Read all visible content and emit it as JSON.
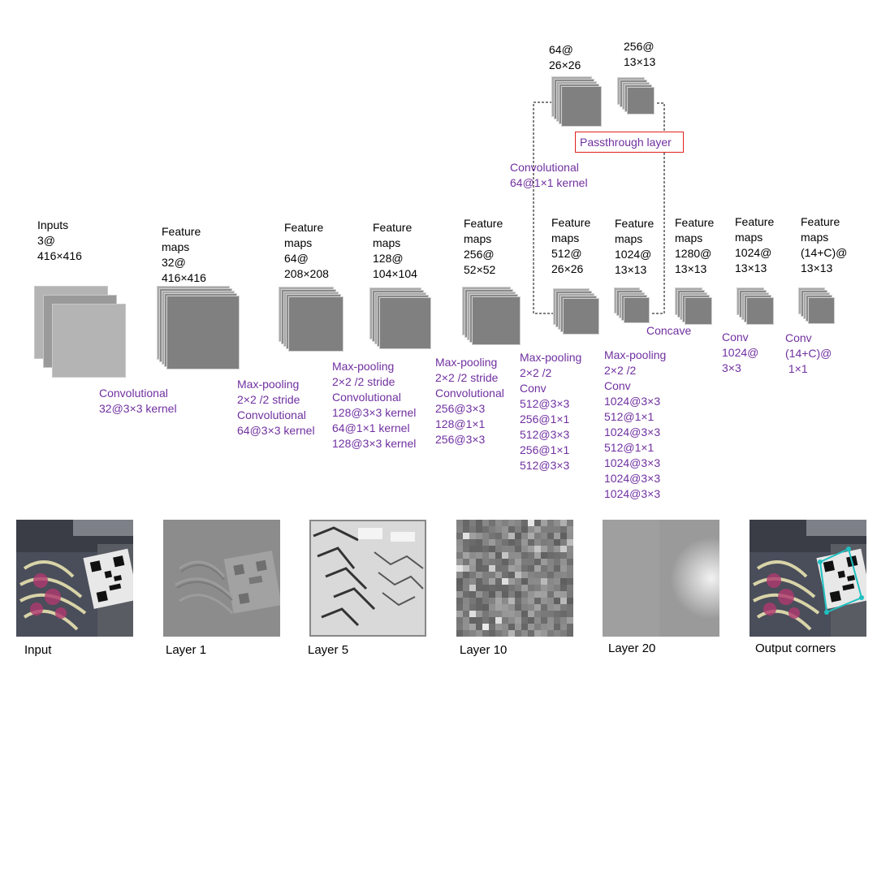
{
  "columns": [
    {
      "id": "inputs",
      "label": "Inputs\n3@\n416×416",
      "op": "Convolutional\n32@3×3 kernel"
    },
    {
      "id": "fm32",
      "label": "Feature\nmaps\n32@\n416×416",
      "op": "Max-pooling\n2×2 /2 stride\nConvolutional\n64@3×3 kernel"
    },
    {
      "id": "fm64",
      "label": "Feature\nmaps\n64@\n208×208",
      "op": "Max-pooling\n2×2 /2 stride\nConvolutional\n128@3×3 kernel\n64@1×1 kernel\n128@3×3 kernel"
    },
    {
      "id": "fm128",
      "label": "Feature\nmaps\n128@\n104×104",
      "op": "Max-pooling\n2×2 /2 stride\nConvolutional\n256@3×3\n128@1×1\n256@3×3"
    },
    {
      "id": "fm256",
      "label": "Feature\nmaps\n256@\n52×52",
      "op": "Max-pooling\n2×2 /2\nConv\n512@3×3\n256@1×1\n512@3×3\n256@1×1\n512@3×3"
    },
    {
      "id": "fm512",
      "label": "Feature\nmaps\n512@\n26×26",
      "op": "Max-pooling\n2×2 /2\nConv\n1024@3×3\n512@1×1\n1024@3×3\n512@1×1\n1024@3×3\n1024@3×3\n1024@3×3"
    },
    {
      "id": "fm1024a",
      "label": "Feature\nmaps\n1024@\n13×13",
      "op": "Concave"
    },
    {
      "id": "fm1280",
      "label": "Feature\nmaps\n1280@\n13×13",
      "op": "Conv\n1024@\n3×3"
    },
    {
      "id": "fm1024b",
      "label": "Feature\nmaps\n1024@\n13×13",
      "op": "Conv\n(14+C)@\n 1×1"
    },
    {
      "id": "fmout",
      "label": "Feature\nmaps\n(14+C)@\n13×13",
      "op": ""
    }
  ],
  "branch": {
    "top_a_label": "64@\n26×26",
    "top_b_label": "256@\n13×13",
    "conv_label": "Convolutional\n64@1×1 kernel",
    "passthrough_label": "Passthrough layer"
  },
  "thumbnails": [
    {
      "id": "input",
      "caption": "Input"
    },
    {
      "id": "layer1",
      "caption": "Layer 1"
    },
    {
      "id": "layer5",
      "caption": "Layer 5"
    },
    {
      "id": "layer10",
      "caption": "Layer 10"
    },
    {
      "id": "layer20",
      "caption": "Layer 20"
    },
    {
      "id": "output",
      "caption": "Output corners"
    }
  ],
  "colors": {
    "text": "#000000",
    "operation_text": "#7030a0",
    "sheet_fill": "#808080",
    "sheet_light": "#b4b4b4",
    "sheet_mid": "#9a9a9a",
    "passthrough_border": "#e02020",
    "corner_marker": "#20c0c0"
  }
}
